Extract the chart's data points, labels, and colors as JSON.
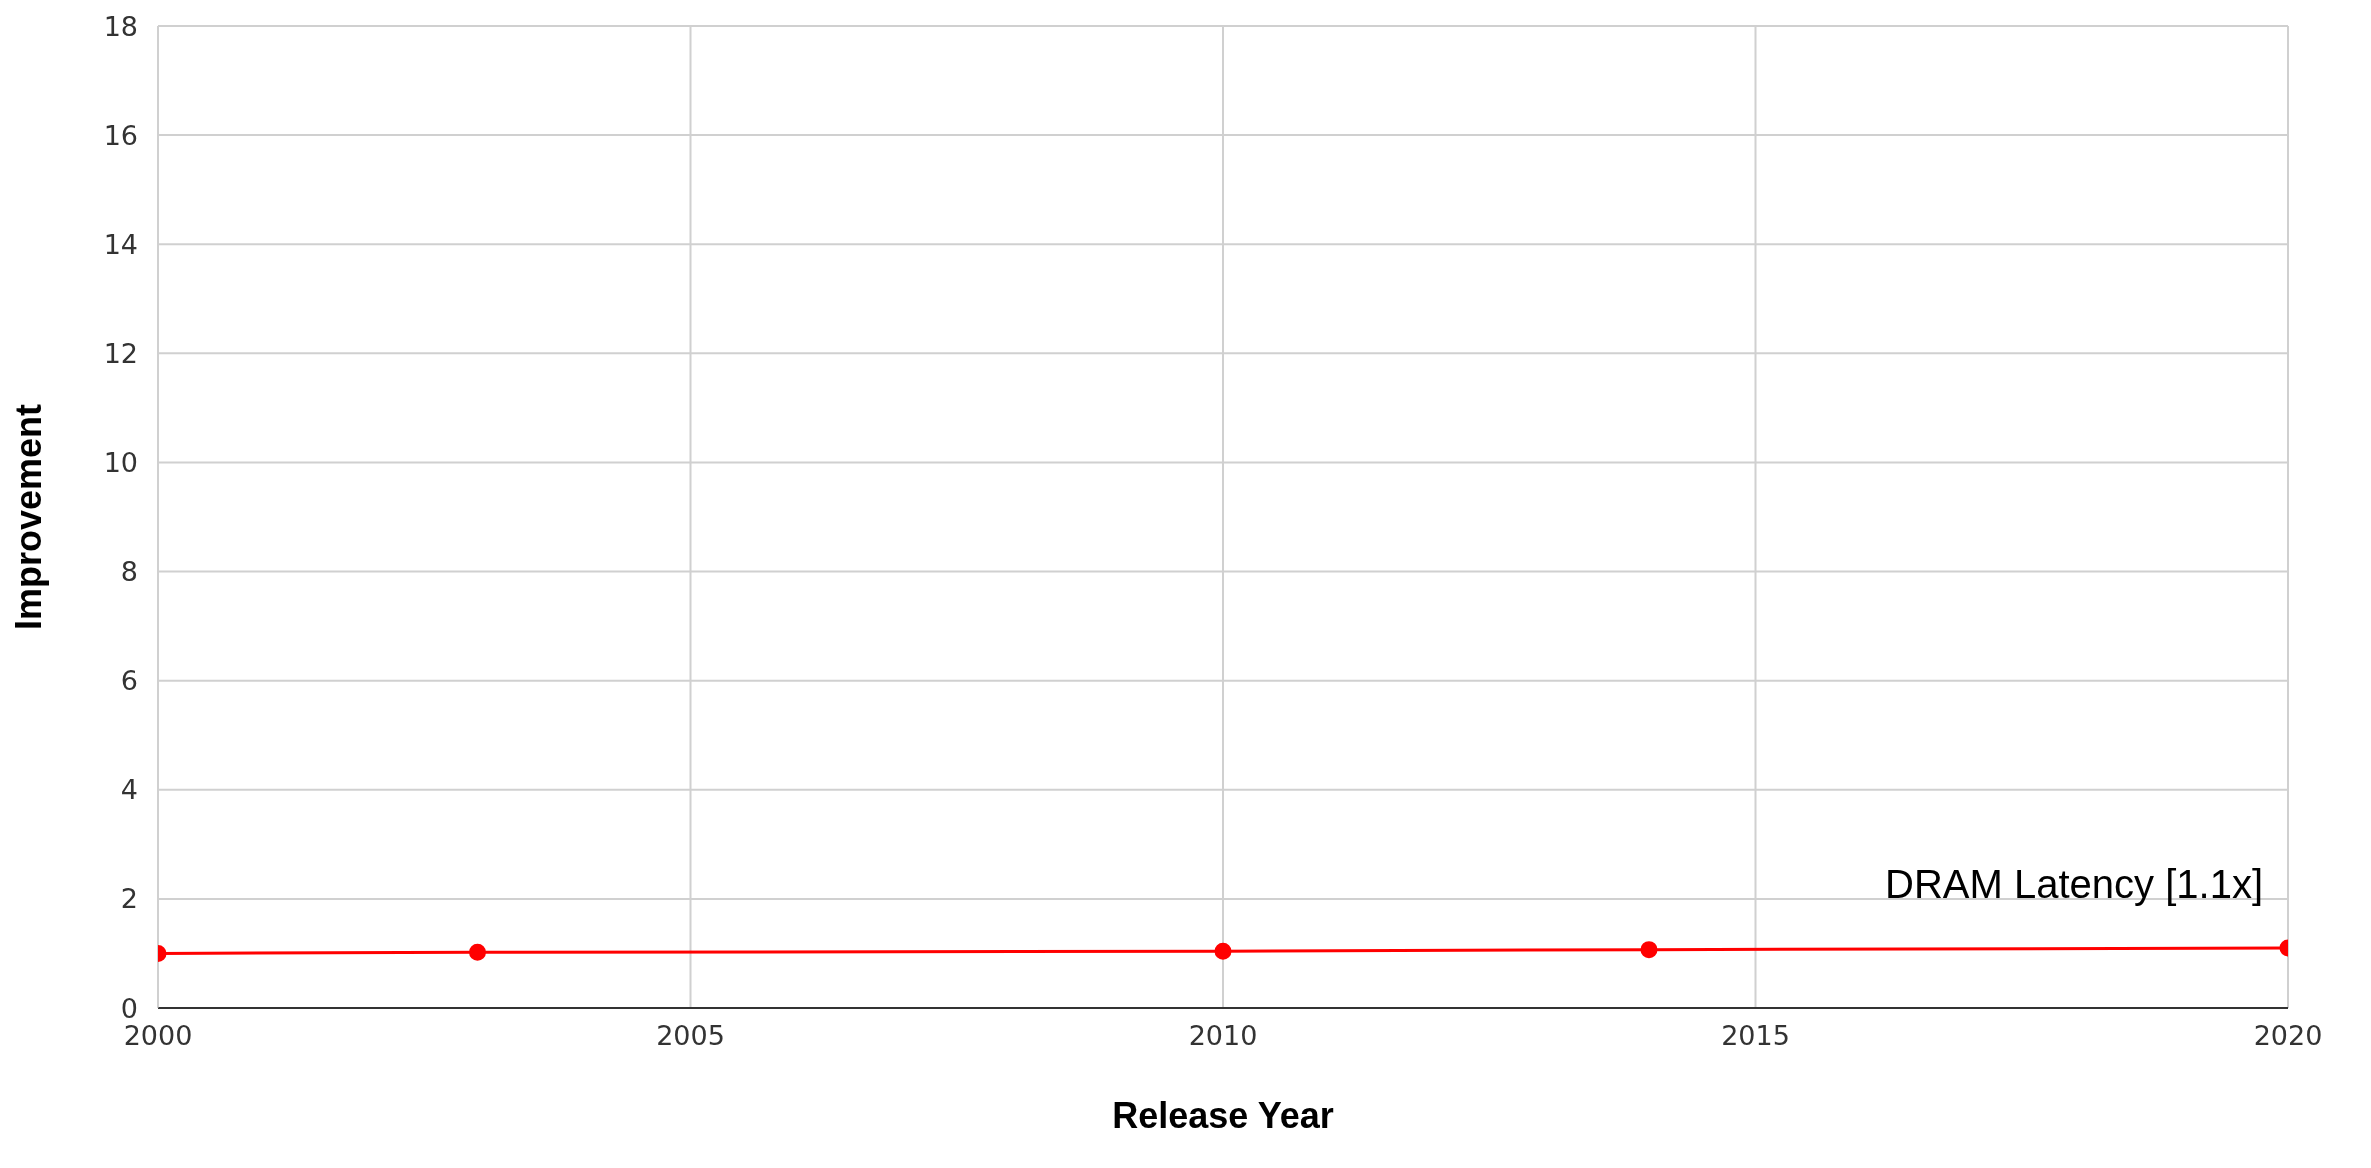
{
  "chart_data": {
    "type": "line",
    "xlabel": "Release Year",
    "ylabel": "Improvement",
    "x": [
      2000,
      2003,
      2010,
      2014,
      2020
    ],
    "series": [
      {
        "color": "#ff0000",
        "values": [
          1.0,
          1.02,
          1.04,
          1.07,
          1.1
        ]
      }
    ],
    "xlim": [
      2000,
      2020
    ],
    "xticks": [
      2000,
      2005,
      2010,
      2015,
      2020
    ],
    "ylim": [
      0,
      18
    ],
    "yticks": [
      0,
      2,
      4,
      6,
      8,
      10,
      12,
      14,
      16,
      18
    ],
    "grid": true,
    "marker": "circle",
    "line_style": "solid",
    "annotations": [
      {
        "text": "DRAM Latency [1.1x]",
        "x": 2020,
        "y": 1.1
      }
    ]
  }
}
